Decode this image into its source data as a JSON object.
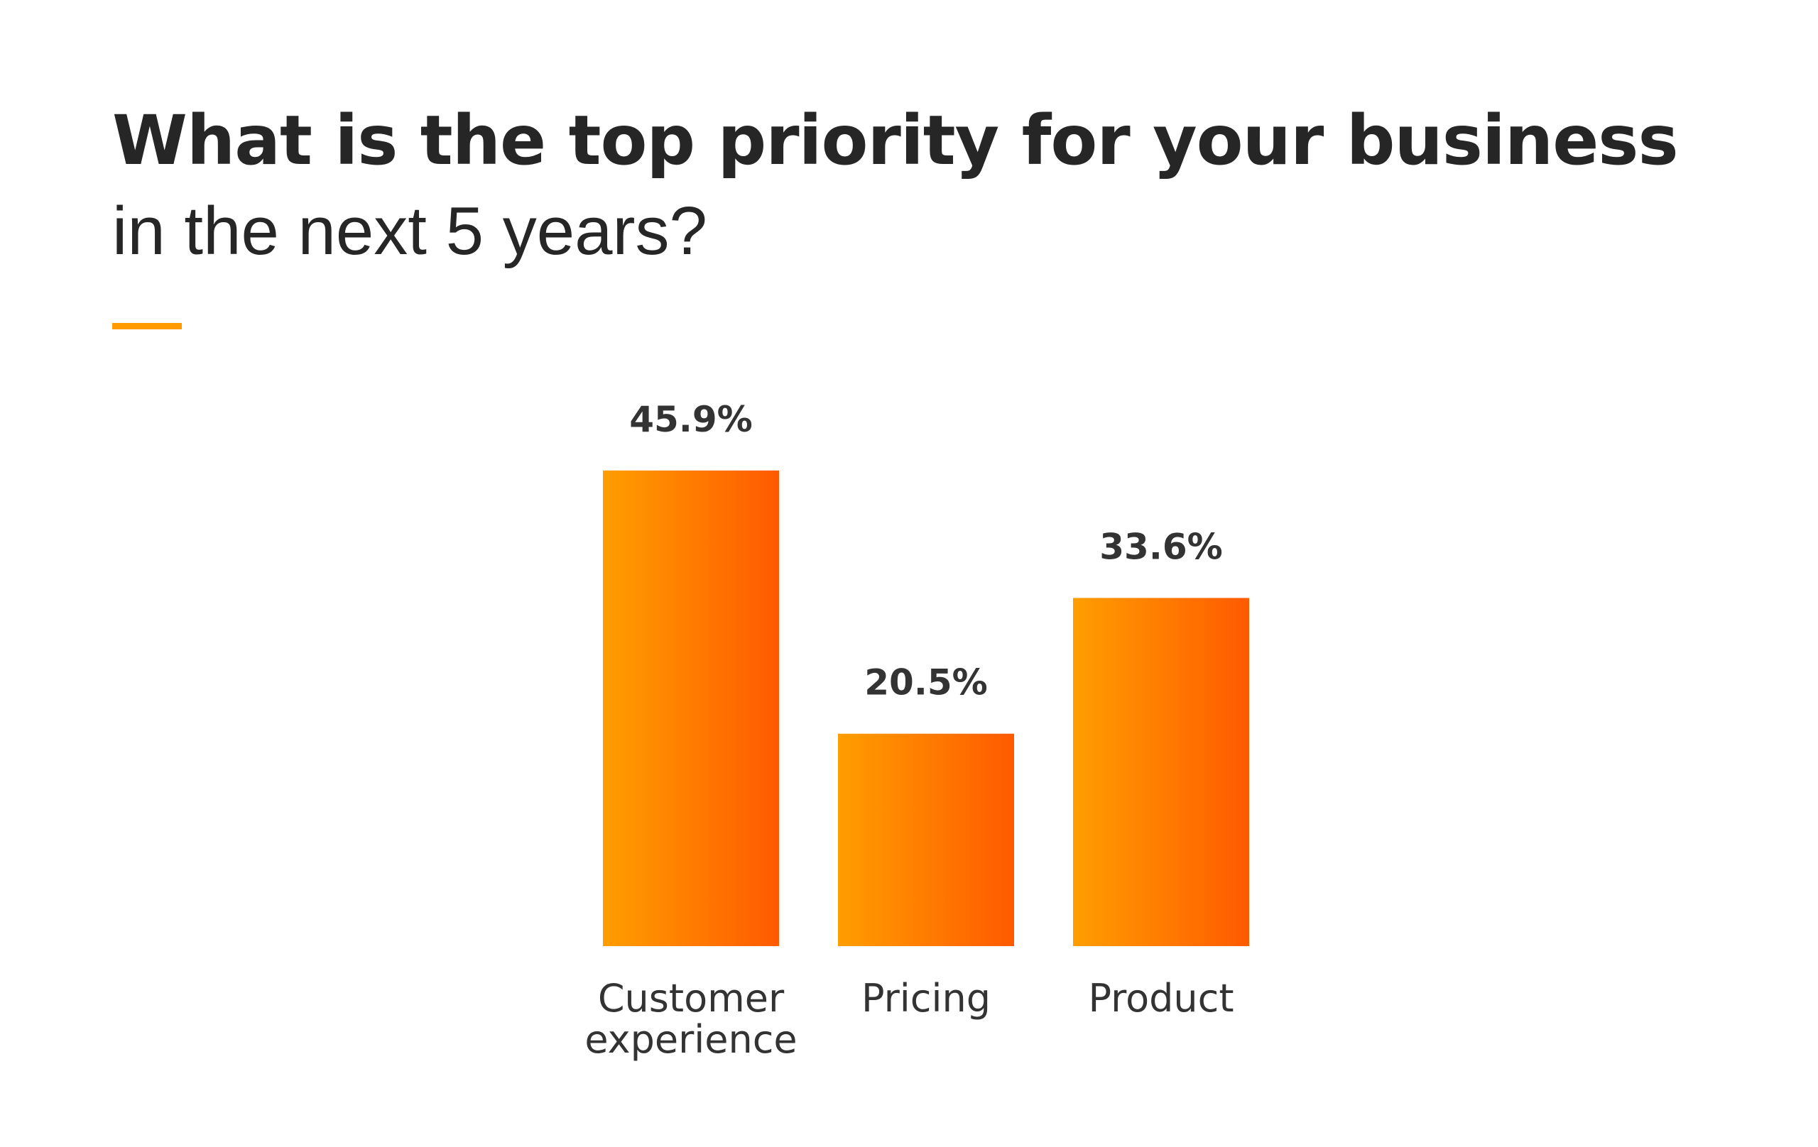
{
  "header": {
    "title_bold": "What is the top priority for your business",
    "title_light": "in the next 5 years?"
  },
  "colors": {
    "accent": "#ff9a00",
    "bar_gradient_start": "#ff9e00",
    "bar_gradient_end": "#ff5a00",
    "text": "#333333"
  },
  "chart_data": {
    "type": "bar",
    "categories": [
      [
        "Customer",
        "experience"
      ],
      [
        "Pricing"
      ],
      [
        "Product"
      ]
    ],
    "values": [
      45.9,
      20.5,
      33.6
    ],
    "value_labels": [
      "45.9%",
      "20.5%",
      "33.6%"
    ],
    "title": "What is the top priority for your business in the next 5 years?",
    "xlabel": "",
    "ylabel": "",
    "ylim": [
      0,
      50
    ],
    "grid": false,
    "legend": "none"
  }
}
